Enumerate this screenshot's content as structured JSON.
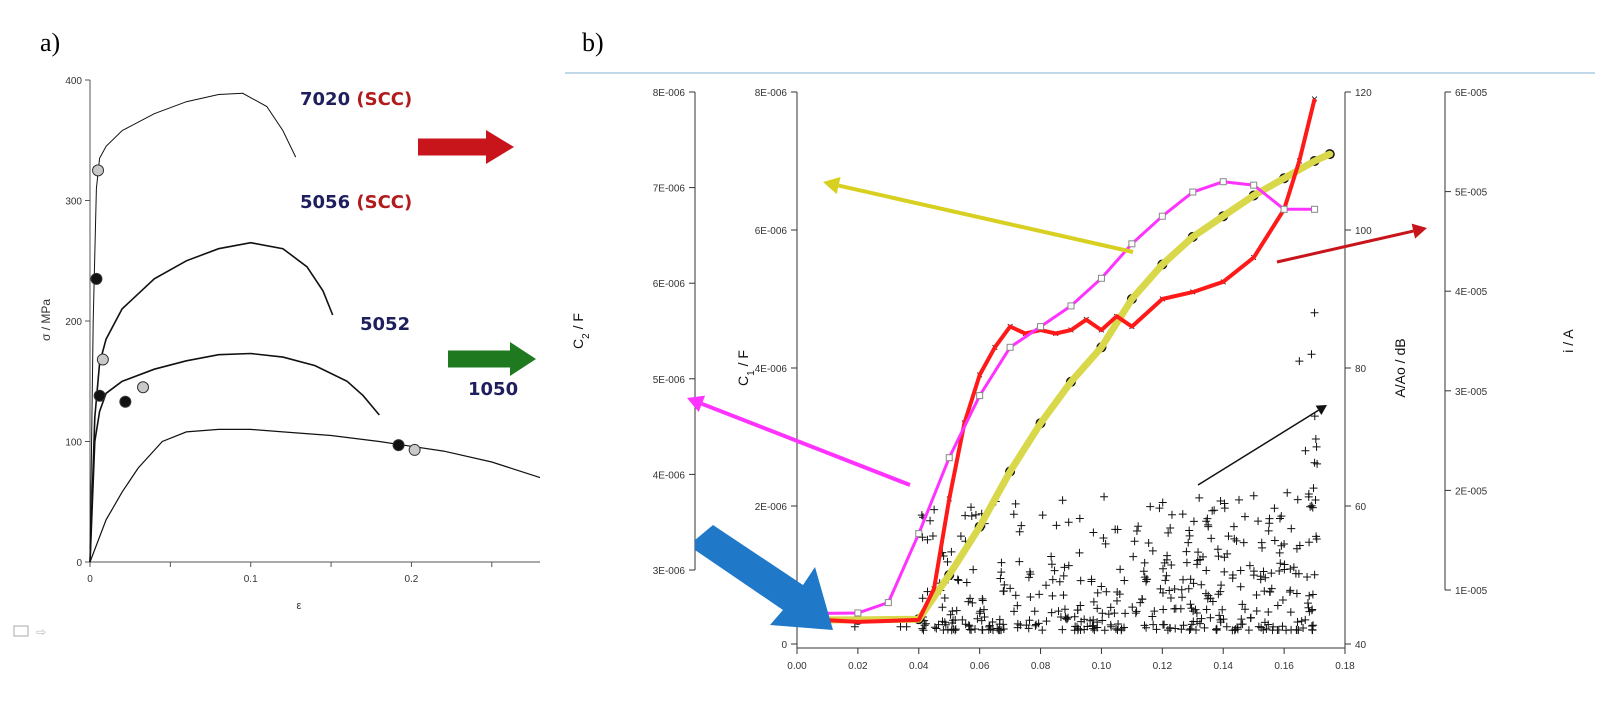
{
  "panel_a_label": "a)",
  "panel_b_label": "b)",
  "colors": {
    "sample_name": "#1f1f5e",
    "scc": "#b01c1c",
    "arrow_red": "#c8141b",
    "arrow_green": "#1f7a1f",
    "arrow_yellow": "#d8d020",
    "arrow_magenta": "#ff33ff",
    "arrow_blue": "#1f78c8",
    "curve_red": "#ff1a1a",
    "curve_yellow": "#d8d84a",
    "curve_magenta": "#ff33ff"
  },
  "chart_data": [
    {
      "type": "line",
      "xlabel": "ε",
      "ylabel": "σ / MPa",
      "xlim": [
        0,
        0.28
      ],
      "ylim": [
        0,
        400
      ],
      "x_ticks": [
        "0",
        "0.1",
        "0.2"
      ],
      "y_ticks": [
        "0",
        "100",
        "200",
        "300",
        "400"
      ],
      "grid": false,
      "series": [
        {
          "name": "7020 (SCC)",
          "label_main": "7020",
          "label_suffix": "(SCC)",
          "x": [
            0,
            0.002,
            0.004,
            0.006,
            0.01,
            0.02,
            0.04,
            0.06,
            0.08,
            0.095,
            0.11,
            0.12,
            0.128
          ],
          "y": [
            0,
            200,
            310,
            335,
            345,
            358,
            372,
            382,
            388,
            389,
            378,
            358,
            336
          ]
        },
        {
          "name": "5056 (SCC)",
          "label_main": "5056",
          "label_suffix": "(SCC)",
          "x": [
            0,
            0.003,
            0.006,
            0.01,
            0.02,
            0.04,
            0.06,
            0.08,
            0.1,
            0.12,
            0.135,
            0.145,
            0.151
          ],
          "y": [
            0,
            120,
            165,
            185,
            210,
            235,
            250,
            260,
            265,
            260,
            245,
            225,
            205
          ]
        },
        {
          "name": "5052",
          "label_main": "5052",
          "label_suffix": "",
          "x": [
            0,
            0.003,
            0.006,
            0.01,
            0.02,
            0.04,
            0.06,
            0.08,
            0.1,
            0.12,
            0.14,
            0.16,
            0.17,
            0.18
          ],
          "y": [
            0,
            100,
            125,
            140,
            150,
            160,
            167,
            172,
            173,
            170,
            163,
            150,
            138,
            122
          ]
        },
        {
          "name": "1050",
          "label_main": "1050",
          "label_suffix": "",
          "x": [
            0,
            0.01,
            0.02,
            0.03,
            0.045,
            0.06,
            0.08,
            0.1,
            0.12,
            0.15,
            0.18,
            0.2,
            0.22,
            0.25,
            0.28
          ],
          "y": [
            0,
            35,
            58,
            78,
            100,
            108,
            110,
            110,
            108,
            105,
            100,
            96,
            92,
            83,
            70
          ]
        }
      ],
      "markers": [
        {
          "x": 0.005,
          "y": 325,
          "fill": "gray"
        },
        {
          "x": 0.004,
          "y": 235,
          "fill": "black"
        },
        {
          "x": 0.008,
          "y": 168,
          "fill": "gray"
        },
        {
          "x": 0.006,
          "y": 138,
          "fill": "black"
        },
        {
          "x": 0.022,
          "y": 133,
          "fill": "black"
        },
        {
          "x": 0.033,
          "y": 145,
          "fill": "gray"
        },
        {
          "x": 0.192,
          "y": 97,
          "fill": "black"
        },
        {
          "x": 0.202,
          "y": 93,
          "fill": "gray"
        }
      ]
    },
    {
      "type": "line",
      "xlim": [
        0,
        0.18
      ],
      "x_ticks": [
        "0.00",
        "0.02",
        "0.04",
        "0.06",
        "0.08",
        "0.10",
        "0.12",
        "0.14",
        "0.16",
        "0.18"
      ],
      "axes": [
        {
          "id": "C2",
          "label": "C",
          "sub": "2",
          "unit": " / F",
          "ticks": [
            "3E-006",
            "4E-006",
            "5E-006",
            "6E-006",
            "7E-006",
            "8E-006"
          ]
        },
        {
          "id": "C1",
          "label": "C",
          "sub": "1",
          "unit": " / F",
          "ticks": [
            "0",
            "2E-006",
            "4E-006",
            "6E-006",
            "8E-006"
          ],
          "ylim": [
            0,
            8e-06
          ]
        },
        {
          "id": "AAo",
          "label": "A/Ao / dB",
          "ticks": [
            "40",
            "60",
            "80",
            "100",
            "120"
          ],
          "ylim": [
            40,
            120
          ]
        },
        {
          "id": "i",
          "label": "i / A",
          "ticks": [
            "1E-005",
            "2E-005",
            "3E-005",
            "4E-005",
            "5E-005",
            "6E-005"
          ]
        }
      ],
      "series": [
        {
          "name": "red",
          "axis": "C1",
          "x": [
            0,
            0.02,
            0.04,
            0.045,
            0.05,
            0.055,
            0.06,
            0.065,
            0.07,
            0.075,
            0.08,
            0.085,
            0.09,
            0.095,
            0.1,
            0.105,
            0.11,
            0.12,
            0.13,
            0.14,
            0.15,
            0.16,
            0.165,
            0.17
          ],
          "y": [
            3.7e-07,
            3.2e-07,
            3.5e-07,
            8e-07,
            2.1e-06,
            3.2e-06,
            3.9e-06,
            4.3e-06,
            4.6e-06,
            4.5e-06,
            4.55e-06,
            4.5e-06,
            4.55e-06,
            4.7e-06,
            4.55e-06,
            4.75e-06,
            4.6e-06,
            5e-06,
            5.1e-06,
            5.25e-06,
            5.6e-06,
            6.3e-06,
            7e-06,
            7.9e-06
          ]
        },
        {
          "name": "yellow",
          "axis": "C1",
          "x": [
            0,
            0.02,
            0.04,
            0.05,
            0.06,
            0.07,
            0.08,
            0.09,
            0.1,
            0.11,
            0.12,
            0.13,
            0.14,
            0.15,
            0.16,
            0.17,
            0.175
          ],
          "y": [
            3.5e-07,
            3.5e-07,
            3.6e-07,
            1e-06,
            1.7e-06,
            2.5e-06,
            3.2e-06,
            3.8e-06,
            4.3e-06,
            5e-06,
            5.5e-06,
            5.9e-06,
            6.2e-06,
            6.5e-06,
            6.75e-06,
            7e-06,
            7.1e-06
          ]
        },
        {
          "name": "magenta",
          "axis": "C1",
          "x": [
            0,
            0.02,
            0.03,
            0.04,
            0.05,
            0.06,
            0.07,
            0.08,
            0.09,
            0.1,
            0.11,
            0.12,
            0.13,
            0.14,
            0.15,
            0.16,
            0.17
          ],
          "y": [
            4.4e-07,
            4.5e-07,
            6e-07,
            1.6e-06,
            2.7e-06,
            3.6e-06,
            4.3e-06,
            4.6e-06,
            4.9e-06,
            5.3e-06,
            5.8e-06,
            6.2e-06,
            6.55e-06,
            6.7e-06,
            6.65e-06,
            6.3e-06,
            6.3e-06
          ]
        }
      ],
      "annotation_text": ""
    }
  ]
}
